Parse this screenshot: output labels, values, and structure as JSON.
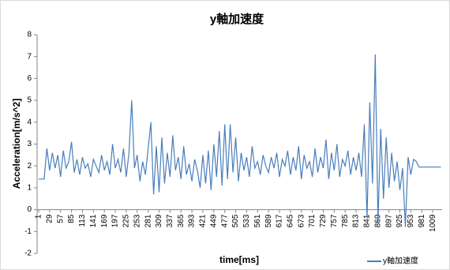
{
  "chart_data": {
    "type": "line",
    "title": "y軸加速度",
    "xlabel": "time[ms]",
    "ylabel": "Acceleration[m/s^2]",
    "xlim": [
      -3,
      1033
    ],
    "xticks": [
      1,
      29,
      57,
      85,
      113,
      141,
      169,
      197,
      225,
      253,
      281,
      309,
      337,
      365,
      393,
      421,
      449,
      477,
      505,
      533,
      561,
      589,
      617,
      645,
      673,
      701,
      729,
      757,
      785,
      813,
      841,
      869,
      897,
      925,
      953,
      981,
      1009
    ],
    "ylim": [
      -2,
      8
    ],
    "yticks": [
      -2,
      -1,
      0,
      1,
      2,
      3,
      4,
      5,
      6,
      7,
      8
    ],
    "legend": "bottom-right",
    "series": [
      {
        "name": "y軸加速度",
        "color": "#4a7ebb",
        "x": [
          1,
          8,
          15,
          22,
          29,
          36,
          43,
          50,
          57,
          64,
          71,
          78,
          85,
          92,
          99,
          106,
          113,
          120,
          127,
          134,
          141,
          148,
          155,
          162,
          169,
          176,
          183,
          190,
          197,
          204,
          211,
          218,
          225,
          232,
          239,
          246,
          253,
          260,
          267,
          274,
          281,
          288,
          295,
          302,
          309,
          316,
          323,
          330,
          337,
          344,
          351,
          358,
          365,
          372,
          379,
          386,
          393,
          400,
          407,
          414,
          421,
          428,
          435,
          442,
          449,
          456,
          463,
          470,
          477,
          484,
          491,
          498,
          505,
          512,
          519,
          526,
          533,
          540,
          547,
          554,
          561,
          568,
          575,
          582,
          589,
          596,
          603,
          610,
          617,
          624,
          631,
          638,
          645,
          652,
          659,
          666,
          673,
          680,
          687,
          694,
          701,
          708,
          715,
          722,
          729,
          736,
          743,
          750,
          757,
          764,
          771,
          778,
          785,
          792,
          799,
          806,
          813,
          820,
          827,
          834,
          841,
          848,
          855,
          862,
          869,
          876,
          883,
          890,
          897,
          904,
          911,
          918,
          925,
          932,
          939,
          946,
          953,
          960,
          967,
          974,
          981,
          988,
          995,
          1002,
          1009,
          1016,
          1023,
          1030
        ],
        "values": [
          1.4,
          1.4,
          1.4,
          2.8,
          1.8,
          2.6,
          1.9,
          2.5,
          1.5,
          2.7,
          1.9,
          2.2,
          3.1,
          1.7,
          2.3,
          1.6,
          2.4,
          1.9,
          2.1,
          1.5,
          2.3,
          2.0,
          1.7,
          2.5,
          1.8,
          2.2,
          1.6,
          3.0,
          1.9,
          2.3,
          1.7,
          2.8,
          1.5,
          2.6,
          5.0,
          1.9,
          2.5,
          1.3,
          2.2,
          1.6,
          2.8,
          4.0,
          0.7,
          2.9,
          0.8,
          3.3,
          1.2,
          2.6,
          1.5,
          3.4,
          1.8,
          2.4,
          1.4,
          2.9,
          1.6,
          2.1,
          1.3,
          2.3,
          1.8,
          1.0,
          2.5,
          1.2,
          2.7,
          0.9,
          3.0,
          1.5,
          3.6,
          1.1,
          3.9,
          1.4,
          3.9,
          1.7,
          3.3,
          1.3,
          2.6,
          1.8,
          2.4,
          1.5,
          2.9,
          1.9,
          2.2,
          1.6,
          2.5,
          2.0,
          1.7,
          2.4,
          1.9,
          2.6,
          1.5,
          2.3,
          2.0,
          2.7,
          1.6,
          2.4,
          1.8,
          2.9,
          1.4,
          2.5,
          1.9,
          2.2,
          1.5,
          2.8,
          1.7,
          2.4,
          1.9,
          3.2,
          1.4,
          2.6,
          1.8,
          3.0,
          1.5,
          2.3,
          2.0,
          2.7,
          1.6,
          2.4,
          1.8,
          2.6,
          1.5,
          3.9,
          -0.4,
          4.9,
          1.2,
          7.1,
          -0.6,
          3.7,
          0.5,
          3.3,
          1.0,
          2.6,
          1.3,
          2.2,
          0.9,
          1.9,
          -0.8,
          2.4,
          1.6,
          2.3,
          2.2,
          1.95,
          1.95,
          1.95,
          1.95,
          1.95,
          1.95,
          1.95,
          1.95,
          1.95
        ]
      }
    ]
  }
}
